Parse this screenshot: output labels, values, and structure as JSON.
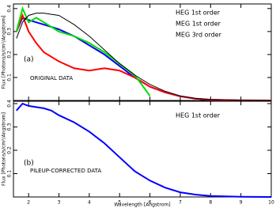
{
  "chart_data": [
    {
      "type": "line",
      "ylabel": "Flux [Photons/s/cm²/Angstrom]",
      "annotations": [
        "(a)",
        "ORIGINAL DATA"
      ],
      "x": [
        1.6,
        1.8,
        2.0,
        2.25,
        2.5,
        2.75,
        3,
        3.5,
        4,
        4.5,
        5,
        5.5,
        6,
        6.5,
        7,
        7.5,
        8,
        9,
        10
      ],
      "series": [
        {
          "name": "HEG 1st order",
          "color": "#0000ff",
          "values": [
            0.3,
            0.36,
            0.35,
            0.34,
            0.33,
            0.32,
            0.31,
            0.28,
            0.24,
            0.2,
            0.15,
            0.1,
            0.06,
            0.035,
            0.018,
            0.008,
            0.003,
            0.0005,
            0
          ]
        },
        {
          "name": "MEG 1st order",
          "color": "#ff0000",
          "values": [
            0.3,
            0.37,
            0.3,
            0.25,
            0.21,
            0.19,
            0.17,
            0.14,
            0.13,
            0.14,
            0.13,
            0.1,
            0.06,
            0.035,
            0.018,
            0.008,
            0.003,
            0.0005,
            0
          ]
        },
        {
          "name": "MEG 3rd order",
          "color": "#00dd00",
          "values": [
            0.3,
            0.4,
            0.34,
            0.36,
            0.34,
            0.32,
            0.3,
            0.28,
            0.25,
            0.21,
            0.16,
            0.11,
            0.02,
            null,
            null,
            null,
            null,
            null,
            null
          ]
        },
        {
          "color": "#000000",
          "values": [
            0.27,
            0.34,
            0.37,
            0.38,
            0.38,
            0.375,
            0.37,
            0.33,
            0.28,
            0.22,
            0.16,
            0.11,
            0.07,
            0.04,
            0.02,
            0.009,
            0.004,
            0.001,
            0
          ]
        }
      ],
      "xlim": [
        1.5,
        10
      ],
      "xticks": [
        2,
        3,
        4,
        5,
        6,
        7,
        8,
        9,
        10
      ],
      "ylim": [
        0,
        0.42
      ],
      "yticks": [
        0.1,
        0.2,
        0.3,
        0.4
      ]
    },
    {
      "type": "line",
      "ylabel": "Flux [Photons/s/cm²/Angstrom]",
      "xlabel": "Wavelength [Angstrom]",
      "annotations": [
        "(b)",
        "PILEUP-CORRECTED DATA"
      ],
      "x": [
        1.6,
        1.8,
        2.0,
        2.25,
        2.5,
        2.75,
        3,
        3.5,
        4,
        4.5,
        5,
        5.5,
        6,
        6.5,
        7,
        7.5,
        8,
        9,
        10
      ],
      "series": [
        {
          "name": "HEG 1st order",
          "color": "#0000ff",
          "values": [
            0.37,
            0.4,
            0.39,
            0.385,
            0.38,
            0.37,
            0.35,
            0.32,
            0.28,
            0.23,
            0.17,
            0.11,
            0.07,
            0.04,
            0.02,
            0.01,
            0.004,
            0.001,
            0
          ]
        }
      ],
      "xlim": [
        1.5,
        10
      ],
      "xticks": [
        2,
        3,
        4,
        5,
        6,
        7,
        8,
        9,
        10
      ],
      "ylim": [
        0,
        0.41
      ],
      "yticks": [
        0.1,
        0.2,
        0.3,
        0.4
      ]
    }
  ]
}
